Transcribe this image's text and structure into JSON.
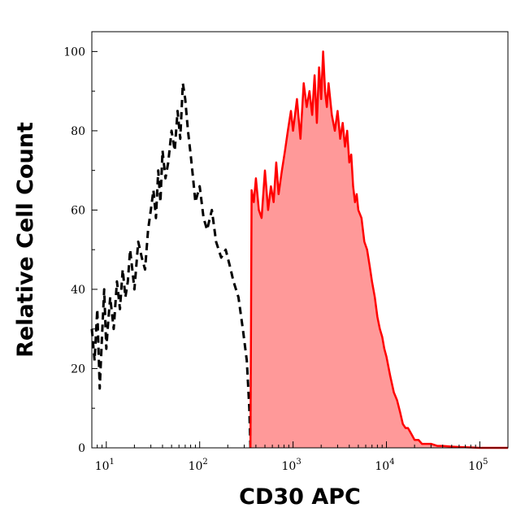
{
  "chart_data": {
    "type": "area",
    "xlabel": "CD30 APC",
    "ylabel": "Relative Cell Count",
    "x_scale": "log",
    "xlim": [
      7,
      200000
    ],
    "ylim": [
      0,
      105
    ],
    "x_ticks": [
      {
        "value": 10,
        "base": "10",
        "exp": "1"
      },
      {
        "value": 100,
        "base": "10",
        "exp": "2"
      },
      {
        "value": 1000,
        "base": "10",
        "exp": "3"
      },
      {
        "value": 10000,
        "base": "10",
        "exp": "4"
      },
      {
        "value": 100000,
        "base": "10",
        "exp": "5"
      }
    ],
    "y_ticks": [
      {
        "value": 0,
        "label": "0"
      },
      {
        "value": 20,
        "label": "20"
      },
      {
        "value": 40,
        "label": "40"
      },
      {
        "value": 60,
        "label": "60"
      },
      {
        "value": 80,
        "label": "80"
      },
      {
        "value": 100,
        "label": "100"
      }
    ],
    "grid": false,
    "series": [
      {
        "style": "dashed-line",
        "color": "#000000",
        "x": [
          7,
          7.5,
          8,
          8.5,
          9,
          9.5,
          10,
          10.5,
          11,
          12,
          13,
          14,
          15,
          16,
          17,
          18,
          19,
          20,
          22,
          24,
          26,
          28,
          30,
          32,
          34,
          36,
          38,
          40,
          43,
          46,
          50,
          54,
          58,
          62,
          66,
          70,
          75,
          80,
          85,
          90,
          100,
          110,
          120,
          135,
          150,
          170,
          190,
          210,
          230,
          260,
          290,
          320,
          340,
          350
        ],
        "y": [
          30,
          22,
          35,
          15,
          28,
          40,
          25,
          32,
          38,
          30,
          42,
          35,
          45,
          38,
          42,
          50,
          45,
          40,
          52,
          48,
          45,
          55,
          60,
          65,
          58,
          70,
          62,
          75,
          68,
          72,
          80,
          75,
          85,
          78,
          92,
          88,
          80,
          74,
          68,
          62,
          66,
          58,
          55,
          60,
          52,
          48,
          50,
          46,
          42,
          38,
          30,
          22,
          10,
          0
        ]
      },
      {
        "style": "filled-area",
        "color": "#ff0000",
        "fill": "#ff9999",
        "x": [
          350,
          360,
          380,
          400,
          430,
          460,
          500,
          540,
          580,
          620,
          660,
          700,
          760,
          820,
          880,
          950,
          1000,
          1100,
          1200,
          1300,
          1400,
          1500,
          1600,
          1700,
          1800,
          1900,
          2000,
          2100,
          2200,
          2300,
          2400,
          2500,
          2600,
          2800,
          3000,
          3200,
          3400,
          3600,
          3800,
          4000,
          4200,
          4400,
          4600,
          4800,
          5000,
          5400,
          5800,
          6200,
          6600,
          7000,
          7500,
          8000,
          8500,
          9000,
          9500,
          10000,
          11000,
          12000,
          13000,
          14000,
          15000,
          16000,
          17000,
          18000,
          19000,
          20000,
          22000,
          24000,
          26000,
          28000,
          30000,
          35000,
          40000,
          50000,
          60000,
          80000,
          100000,
          150000,
          200000
        ],
        "y": [
          0,
          65,
          62,
          68,
          60,
          58,
          70,
          60,
          66,
          62,
          72,
          64,
          70,
          75,
          80,
          85,
          80,
          88,
          78,
          92,
          86,
          90,
          84,
          94,
          82,
          96,
          88,
          100,
          90,
          86,
          92,
          88,
          84,
          80,
          85,
          78,
          82,
          76,
          80,
          72,
          74,
          66,
          62,
          64,
          60,
          58,
          52,
          50,
          46,
          42,
          38,
          33,
          30,
          28,
          25,
          23,
          18,
          14,
          12,
          9,
          6,
          5,
          5,
          4,
          3,
          2,
          2,
          1,
          1,
          1,
          1,
          0.5,
          0.5,
          0.3,
          0.2,
          0.1,
          0,
          0,
          0
        ]
      }
    ]
  }
}
